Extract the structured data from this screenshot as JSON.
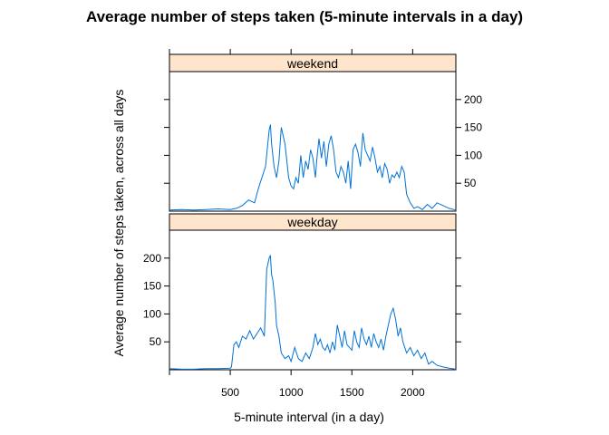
{
  "chart_data": {
    "type": "line",
    "title": "Average number of steps taken (5-minute intervals in a day)",
    "xlabel": "5-minute interval (in a day)",
    "ylabel": "Average number of steps taken, across all days",
    "xlim": [
      0,
      2355
    ],
    "ylim": [
      0,
      250
    ],
    "x_ticks": [
      500,
      1000,
      1500,
      2000
    ],
    "y_ticks": [
      50,
      100,
      150,
      200
    ],
    "line_color": "#0072d6",
    "strip_color": "#ffe5cc",
    "panels": [
      {
        "name": "weekend",
        "series": [
          {
            "x": [
              0,
              100,
              200,
              300,
              400,
              500,
              550,
              600,
              650,
              700,
              730,
              760,
              790,
              820,
              830,
              840,
              860,
              880,
              900,
              920,
              950,
              980,
              1000,
              1020,
              1040,
              1060,
              1080,
              1100,
              1120,
              1140,
              1160,
              1180,
              1200,
              1215,
              1230,
              1250,
              1270,
              1290,
              1310,
              1330,
              1350,
              1370,
              1390,
              1410,
              1430,
              1450,
              1470,
              1490,
              1510,
              1530,
              1550,
              1570,
              1590,
              1610,
              1630,
              1650,
              1670,
              1690,
              1710,
              1730,
              1750,
              1770,
              1790,
              1810,
              1830,
              1850,
              1870,
              1890,
              1910,
              1930,
              1950,
              1980,
              2010,
              2040,
              2080,
              2120,
              2160,
              2200,
              2250,
              2300,
              2355
            ],
            "y": [
              2,
              3,
              2,
              3,
              4,
              3,
              5,
              10,
              20,
              15,
              40,
              60,
              80,
              145,
              155,
              120,
              80,
              60,
              90,
              150,
              120,
              60,
              45,
              40,
              60,
              50,
              100,
              60,
              90,
              75,
              110,
              95,
              60,
              100,
              130,
              95,
              125,
              80,
              120,
              135,
              110,
              70,
              60,
              80,
              70,
              50,
              90,
              40,
              110,
              120,
              105,
              80,
              140,
              110,
              100,
              90,
              115,
              95,
              70,
              80,
              60,
              85,
              75,
              50,
              65,
              60,
              70,
              60,
              80,
              70,
              30,
              15,
              5,
              8,
              3,
              12,
              5,
              15,
              10,
              5,
              2
            ]
          }
        ]
      },
      {
        "name": "weekday",
        "series": [
          {
            "x": [
              0,
              100,
              200,
              300,
              400,
              500,
              510,
              520,
              530,
              550,
              570,
              600,
              630,
              660,
              690,
              720,
              750,
              780,
              800,
              820,
              830,
              840,
              850,
              860,
              870,
              880,
              900,
              920,
              950,
              980,
              1000,
              1030,
              1060,
              1090,
              1120,
              1150,
              1180,
              1200,
              1220,
              1240,
              1260,
              1280,
              1300,
              1320,
              1340,
              1360,
              1380,
              1400,
              1420,
              1440,
              1460,
              1480,
              1500,
              1520,
              1540,
              1560,
              1580,
              1600,
              1620,
              1640,
              1660,
              1680,
              1700,
              1720,
              1740,
              1760,
              1780,
              1800,
              1820,
              1840,
              1860,
              1880,
              1900,
              1920,
              1950,
              1980,
              2010,
              2040,
              2070,
              2100,
              2130,
              2160,
              2200,
              2250,
              2300,
              2355
            ],
            "y": [
              2,
              1,
              1,
              2,
              2,
              3,
              5,
              25,
              45,
              50,
              40,
              60,
              55,
              70,
              55,
              65,
              75,
              60,
              180,
              200,
              205,
              170,
              160,
              140,
              120,
              80,
              60,
              30,
              20,
              25,
              15,
              40,
              20,
              15,
              30,
              20,
              40,
              65,
              45,
              55,
              40,
              35,
              45,
              30,
              50,
              35,
              80,
              60,
              40,
              70,
              45,
              40,
              35,
              70,
              50,
              40,
              75,
              55,
              45,
              60,
              40,
              65,
              50,
              40,
              55,
              35,
              60,
              80,
              100,
              110,
              90,
              60,
              75,
              50,
              30,
              40,
              25,
              35,
              20,
              30,
              10,
              15,
              8,
              5,
              3,
              1
            ]
          }
        ]
      }
    ]
  }
}
